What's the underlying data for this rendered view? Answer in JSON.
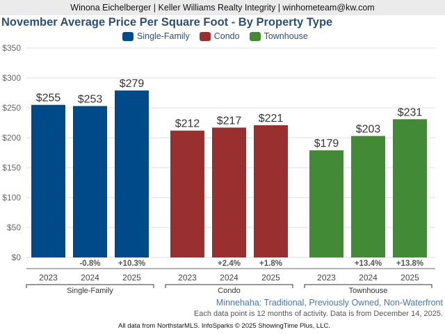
{
  "header": {
    "agent_line": "Winona Eichelberger | Keller Williams Realty Integrity | winhometeam@kw.com"
  },
  "chart_data": {
    "type": "bar",
    "title": "November Average Price Per Square Foot - By Property Type",
    "xlabel": "",
    "ylabel": "",
    "ylim": [
      0,
      350
    ],
    "yticks": [
      0,
      50,
      100,
      150,
      200,
      250,
      300,
      350
    ],
    "ytick_labels": [
      "$0",
      "$50",
      "$100",
      "$150",
      "$200",
      "$250",
      "$300",
      "$350"
    ],
    "grid": true,
    "legend_position": "top-center",
    "legend": [
      {
        "name": "Single-Family",
        "color": "#004a8a"
      },
      {
        "name": "Condo",
        "color": "#9a2f30"
      },
      {
        "name": "Townhouse",
        "color": "#428a35"
      }
    ],
    "groups": [
      {
        "name": "Single-Family",
        "color": "#004a8a",
        "categories": [
          "2023",
          "2024",
          "2025"
        ],
        "values": [
          255,
          253,
          279
        ],
        "value_labels": [
          "$255",
          "$253",
          "$279"
        ],
        "changes": [
          "",
          "-0.8%",
          "+10.3%"
        ]
      },
      {
        "name": "Condo",
        "color": "#9a2f30",
        "categories": [
          "2023",
          "2024",
          "2025"
        ],
        "values": [
          212,
          217,
          221
        ],
        "value_labels": [
          "$212",
          "$217",
          "$221"
        ],
        "changes": [
          "",
          "+2.4%",
          "+1.8%"
        ]
      },
      {
        "name": "Townhouse",
        "color": "#428a35",
        "categories": [
          "2023",
          "2024",
          "2025"
        ],
        "values": [
          179,
          203,
          231
        ],
        "value_labels": [
          "$179",
          "$203",
          "$231"
        ],
        "changes": [
          "",
          "+13.4%",
          "+13.8%"
        ]
      }
    ]
  },
  "info": {
    "subtitle": "Minnehaha: Traditional, Previously Owned, Non-Waterfront",
    "note": "Each data point is 12 months of activity. Data is from December 14, 2025.",
    "footer": "All data from NorthstarMLS. InfoSparks © 2025 ShowingTime Plus, LLC."
  }
}
